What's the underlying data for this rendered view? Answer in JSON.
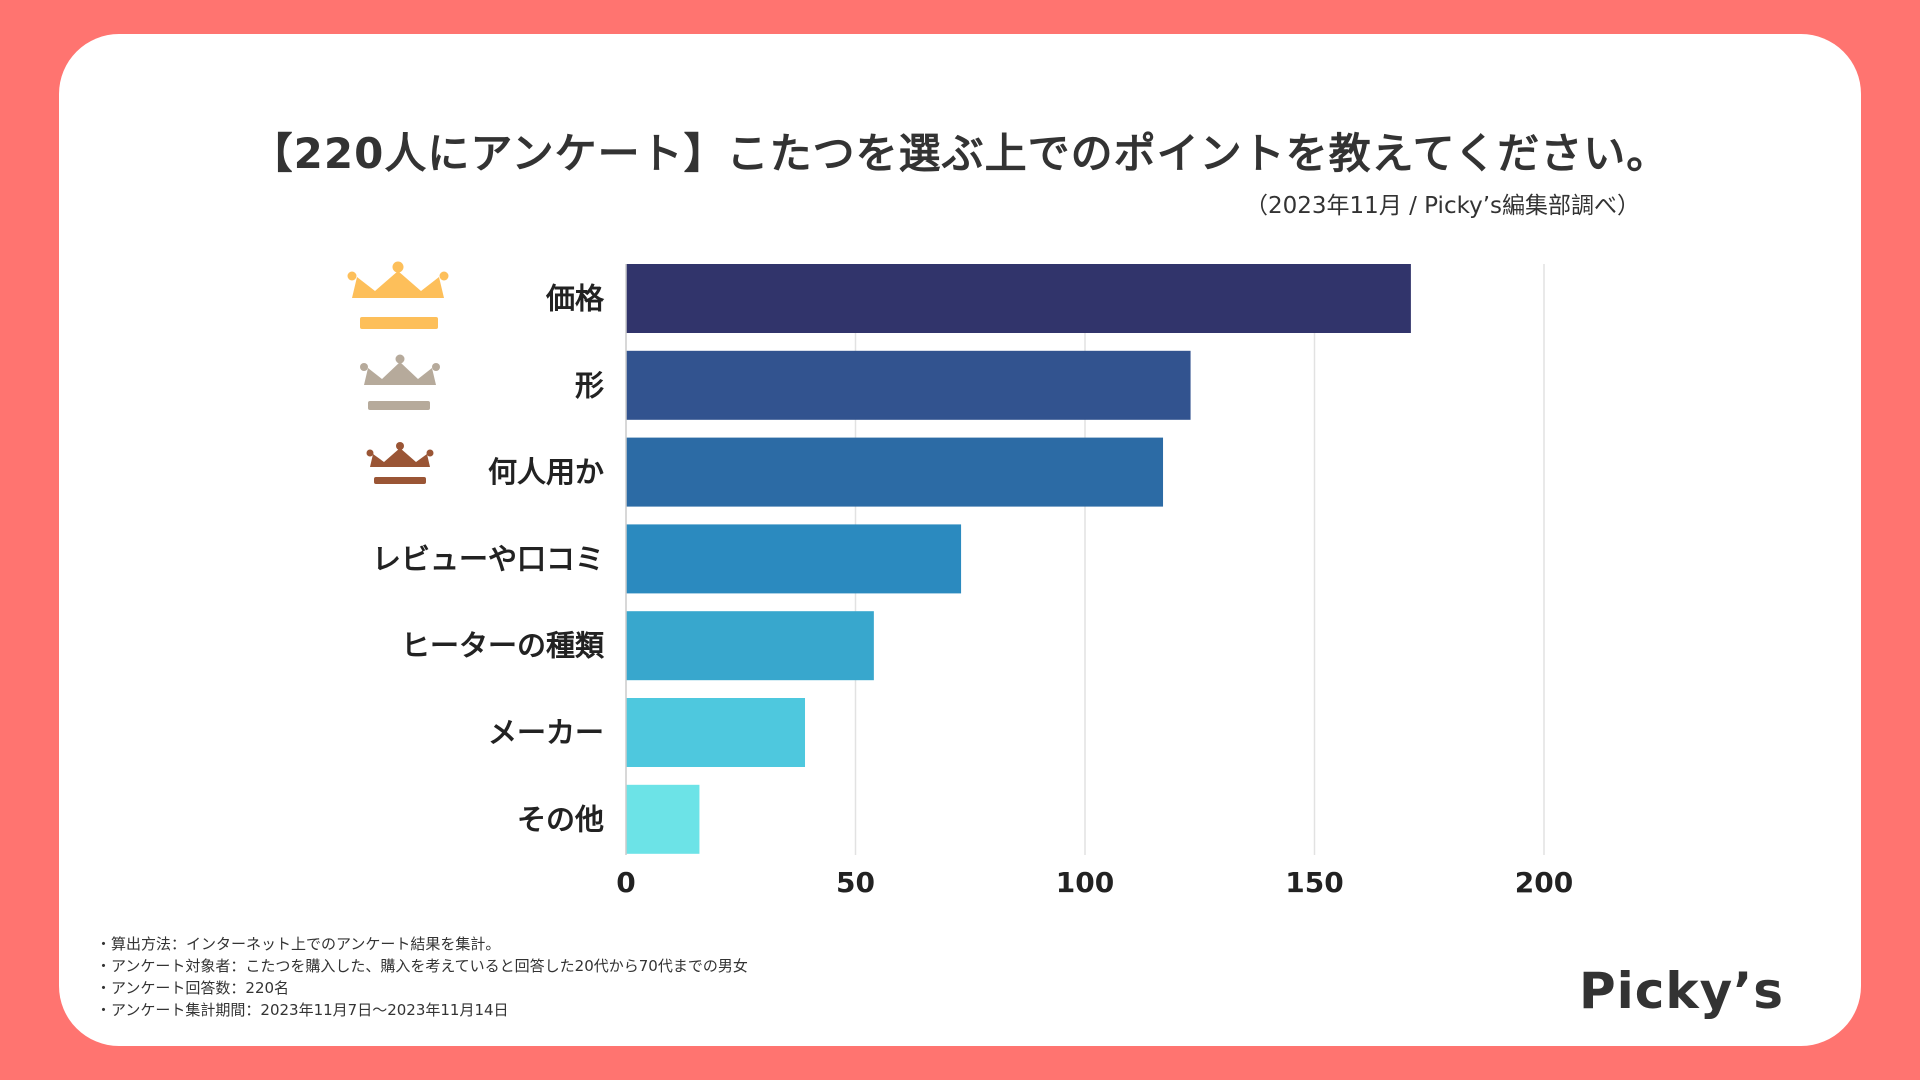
{
  "title": "【220人にアンケート】こたつを選ぶ上でのポイントを教えてください。",
  "source": "（2023年11月 / Picky’s編集部調べ）",
  "notes": [
    "・算出方法：インターネット上でのアンケート結果を集計。",
    "・アンケート対象者：こたつを購入した、購入を考えていると回答した20代から70代までの男女",
    "・アンケート回答数：220名",
    "・アンケート集計期間：2023年11月7日〜2023年11月14日"
  ],
  "logo": "Picky’s",
  "colors": {
    "background": "#FF7470",
    "gold": "#FDBF5A",
    "silver": "#B6AA9B",
    "bronze": "#9A5535"
  },
  "rank_icons": [
    "crown-gold-icon",
    "crown-silver-icon",
    "crown-bronze-icon"
  ],
  "chart_data": {
    "type": "bar",
    "orientation": "horizontal",
    "categories": [
      "価格",
      "形",
      "何人用か",
      "レビューや口コミ",
      "ヒーターの種類",
      "メーカー",
      "その他"
    ],
    "values": [
      171,
      123,
      117,
      73,
      54,
      39,
      16
    ],
    "colors": [
      "#31346B",
      "#32538F",
      "#2C6BA5",
      "#2B8ABF",
      "#38A7CD",
      "#4EC8DE",
      "#6CE3E7"
    ],
    "xlim": [
      0,
      200
    ],
    "xticks": [
      0,
      50,
      100,
      150,
      200
    ],
    "grid": true,
    "title": "",
    "xlabel": "",
    "ylabel": ""
  }
}
